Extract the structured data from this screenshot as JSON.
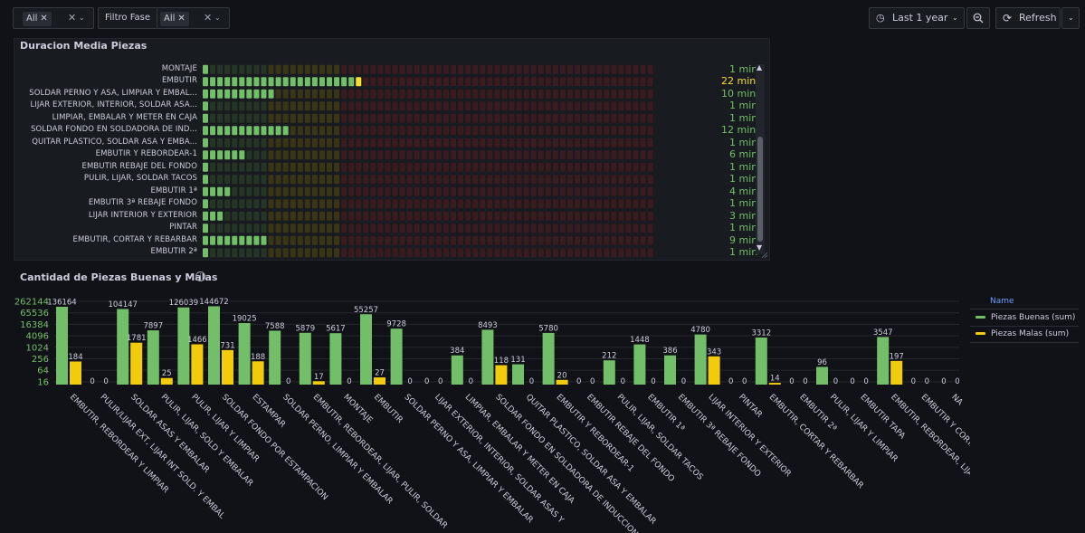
{
  "toolbar": {
    "filter1_value": "All",
    "filter2_label": "Filtro Fase",
    "filter2_value": "All",
    "time_range": "Last 1 year",
    "refresh_label": "Refresh"
  },
  "panel_duration": {
    "title": "Duracion Media Piezas",
    "rows": [
      {
        "label": "MONTAJE",
        "value": "1 min",
        "minutes": 1
      },
      {
        "label": "EMBUTIR",
        "value": "22 min",
        "minutes": 22
      },
      {
        "label": "SOLDAR PERNO Y ASA, LIMPIAR Y EMBAL...",
        "value": "10 min",
        "minutes": 10
      },
      {
        "label": "LIJAR EXTERIOR, INTERIOR, SOLDAR ASA...",
        "value": "1 min",
        "minutes": 1
      },
      {
        "label": "LIMPIAR, EMBALAR Y METER EN CAJA",
        "value": "1 min",
        "minutes": 1
      },
      {
        "label": "SOLDAR FONDO EN SOLDADORA DE IND...",
        "value": "12 min",
        "minutes": 12
      },
      {
        "label": "QUITAR PLASTICO, SOLDAR ASA Y EMBA...",
        "value": "1 min",
        "minutes": 1
      },
      {
        "label": "EMBUTIR Y REBORDEAR-1",
        "value": "6 min",
        "minutes": 6
      },
      {
        "label": "EMBUTIR REBAJE DEL FONDO",
        "value": "1 min",
        "minutes": 1
      },
      {
        "label": "PULIR, LIJAR, SOLDAR TACOS",
        "value": "1 min",
        "minutes": 1
      },
      {
        "label": "EMBUTIR 1ª",
        "value": "4 min",
        "minutes": 4
      },
      {
        "label": "EMBUTIR 3ª REBAJE FONDO",
        "value": "1 min",
        "minutes": 1
      },
      {
        "label": "LIJAR INTERIOR Y EXTERIOR",
        "value": "3 min",
        "minutes": 3
      },
      {
        "label": "PINTAR",
        "value": "1 min",
        "minutes": 1
      },
      {
        "label": "EMBUTIR, CORTAR Y REBARBAR",
        "value": "9 min",
        "minutes": 9
      },
      {
        "label": "EMBUTIR 2ª",
        "value": "1 min",
        "minutes": 1
      }
    ],
    "colors": {
      "green": "#73bf69",
      "yellow": "#fade2a",
      "green_dim": "#263526",
      "yellow_dim": "#3a3517",
      "red_dim": "#3a1b1f"
    }
  },
  "panel_pieces": {
    "title": "Cantidad de Piezas Buenas y Malas",
    "legend_header": "Name",
    "chart_data": {
      "type": "bar",
      "y_ticks": [
        "262144",
        "65536",
        "16384",
        "4096",
        "1024",
        "256",
        "64",
        "16"
      ],
      "y_scale": "log",
      "categories": [
        "EMBUTIR, REBORDEAR Y LIMPIAR",
        "PULIR/LIJAR EXT, LIJAR INT SOLD. Y EMBAL",
        "SOLDAR ASAS Y EMBALAR",
        "PULIR, LIJAR, SOLD Y EMBALAR",
        "PULIR, LIJAR Y LIMPIAR",
        "SOLDAR FONDO POR ESTAMPACION",
        "ESTAMPAR",
        "SOLDAR PERNO, LIMPIAR Y EMBALAR",
        "EMBUTIR, REBORDEAR, LIJAR, PULIR, SOLDAR",
        "MONTAJE",
        "EMBUTIR",
        "SOLDAR PERNO Y ASA, LIMPIAR Y EMBALAR",
        "LIJAR EXTERIOR, INTERIOR, SOLDAR ASAS Y",
        "LIMPIAR, EMBALAR Y METER EN CAJA",
        "SOLDAR FONDO EN SOLDADORA DE INDUCCION",
        "QUITAR PLASTICO, SOLDAR ASA Y EMBALAR",
        "EMBUTIR Y REBORDEAR-1",
        "EMBUTIR REBAJE DEL FONDO",
        "PULIR, LIJAR, SOLDAR TACOS",
        "EMBUTIR 1ª",
        "EMBUTIR 3ª REBAJE FONDO",
        "LIJAR INTERIOR Y EXTERIOR",
        "PINTAR",
        "EMBUTIR, CORTAR Y REBARBAR",
        "EMBUTIR 2ª",
        "PULIR, LIJAR Y LIMPIAR",
        "EMBUTIR TAPA",
        "EMBUTIR, REBORDEAR, LIJAR",
        "EMBUTIR Y CORTAR",
        "NA"
      ],
      "series": [
        {
          "name": "Piezas Buenas (sum)",
          "color": "#73bf69",
          "values": [
            136164,
            0,
            104147,
            7897,
            126039,
            144672,
            19025,
            7588,
            5879,
            5617,
            55257,
            9728,
            0,
            384,
            8493,
            131,
            5780,
            0,
            212,
            1448,
            386,
            4780,
            0,
            3312,
            0,
            96,
            0,
            3547,
            0,
            0
          ]
        },
        {
          "name": "Piezas Malas (sum)",
          "color": "#f2cc0c",
          "values": [
            184,
            0,
            1781,
            25,
            1466,
            731,
            188,
            0,
            17,
            0,
            27,
            0,
            0,
            0,
            118,
            0,
            20,
            0,
            0,
            0,
            0,
            343,
            0,
            14,
            0,
            0,
            0,
            197,
            0,
            0
          ]
        }
      ]
    }
  }
}
